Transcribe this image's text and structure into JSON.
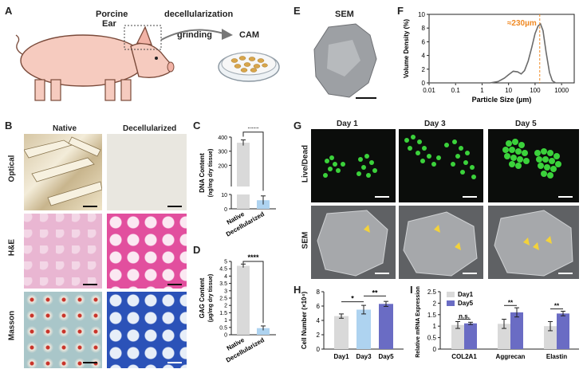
{
  "panels": {
    "a": {
      "letter": "A",
      "ear_label_1": "Porcine",
      "ear_label_2": "Ear",
      "step1": "decellularization",
      "step2": "grinding",
      "product": "CAM"
    },
    "b": {
      "letter": "B",
      "col1": "Native",
      "col2": "Decellularized",
      "row1": "Optical",
      "row2": "H&E",
      "row3": "Masson"
    },
    "c": {
      "letter": "C"
    },
    "d": {
      "letter": "D"
    },
    "e": {
      "letter": "E",
      "title": "SEM"
    },
    "f": {
      "letter": "F"
    },
    "g": {
      "letter": "G",
      "col1": "Day 1",
      "col2": "Day 3",
      "col3": "Day 5",
      "row1": "Live/Dead",
      "row2": "SEM"
    },
    "h": {
      "letter": "H"
    },
    "i": {
      "letter": "I"
    }
  },
  "chart_data": [
    {
      "id": "C",
      "type": "bar",
      "categories": [
        "Native",
        "Decellularized"
      ],
      "values": [
        360,
        6
      ],
      "errors": [
        20,
        3
      ],
      "ylabel": "DNA Content (ng/mg dry tissue)",
      "yticks": [
        0,
        10,
        200,
        300,
        400
      ],
      "axis_break": [
        10,
        50
      ],
      "significance": "****",
      "colors": [
        "#d9d9d9",
        "#aed3f0"
      ]
    },
    {
      "id": "D",
      "type": "bar",
      "categories": [
        "Native",
        "Decellularized"
      ],
      "values": [
        4.7,
        0.45
      ],
      "errors": [
        0.12,
        0.15
      ],
      "ylabel": "GAG Content (µg/mg dry tissue)",
      "ylim": [
        0,
        5
      ],
      "yticks": [
        0,
        0.5,
        1,
        1.5,
        2,
        2.5,
        3,
        3.5,
        4,
        4.5,
        5
      ],
      "significance": "****",
      "colors": [
        "#d9d9d9",
        "#aed3f0"
      ]
    },
    {
      "id": "F",
      "type": "line",
      "xlabel": "Particle Size (µm)",
      "ylabel": "Volume Density (%)",
      "xscale": "log",
      "xticks": [
        0.01,
        0.1,
        1,
        10,
        100,
        1000
      ],
      "xticklabels": [
        "0.01",
        "0.1",
        "1",
        "10",
        "100",
        "1000"
      ],
      "ylim": [
        0,
        10
      ],
      "yticks": [
        0,
        2,
        4,
        6,
        8,
        10
      ],
      "x": [
        0.01,
        2,
        4,
        7,
        10,
        15,
        22,
        30,
        40,
        55,
        75,
        100,
        130,
        160,
        200,
        260,
        350,
        450,
        600,
        800,
        1000,
        1400,
        2000
      ],
      "y": [
        0,
        0,
        0.2,
        0.7,
        1.2,
        1.7,
        1.6,
        1.3,
        1.8,
        3.2,
        5.2,
        7.2,
        8.3,
        8.6,
        7.6,
        4.5,
        1.5,
        0.3,
        0,
        0,
        0,
        0,
        0
      ],
      "annotation": "≈230µm",
      "annotation_x": 150
    },
    {
      "id": "H",
      "type": "bar",
      "categories": [
        "Day1",
        "Day3",
        "Day5"
      ],
      "values": [
        4.6,
        5.5,
        6.3
      ],
      "errors": [
        0.3,
        0.6,
        0.35
      ],
      "ylabel": "Cell Number (×10⁴)",
      "ylim": [
        0,
        8
      ],
      "yticks": [
        0,
        2,
        4,
        6,
        8
      ],
      "significance": [
        {
          "from": 0,
          "to": 1,
          "label": "*"
        },
        {
          "from": 1,
          "to": 2,
          "label": "**"
        }
      ],
      "colors": [
        "#d9d9d9",
        "#aed3f0",
        "#6a6cc4"
      ]
    },
    {
      "id": "I",
      "type": "bar",
      "categories": [
        "COL2A1",
        "Aggrecan",
        "Elastin"
      ],
      "series": [
        {
          "name": "Day1",
          "values": [
            1.05,
            1.1,
            1.0
          ],
          "errors": [
            0.15,
            0.2,
            0.2
          ],
          "color": "#d9d9d9"
        },
        {
          "name": "Day5",
          "values": [
            1.12,
            1.6,
            1.55
          ],
          "errors": [
            0.05,
            0.2,
            0.1
          ],
          "color": "#6a6cc4"
        }
      ],
      "ylabel": "Relative mRNA Expression",
      "ylim": [
        0,
        2.5
      ],
      "yticks": [
        0,
        0.5,
        1,
        1.5,
        2,
        2.5
      ],
      "significance": [
        "n.s.",
        "**",
        "**"
      ]
    }
  ]
}
